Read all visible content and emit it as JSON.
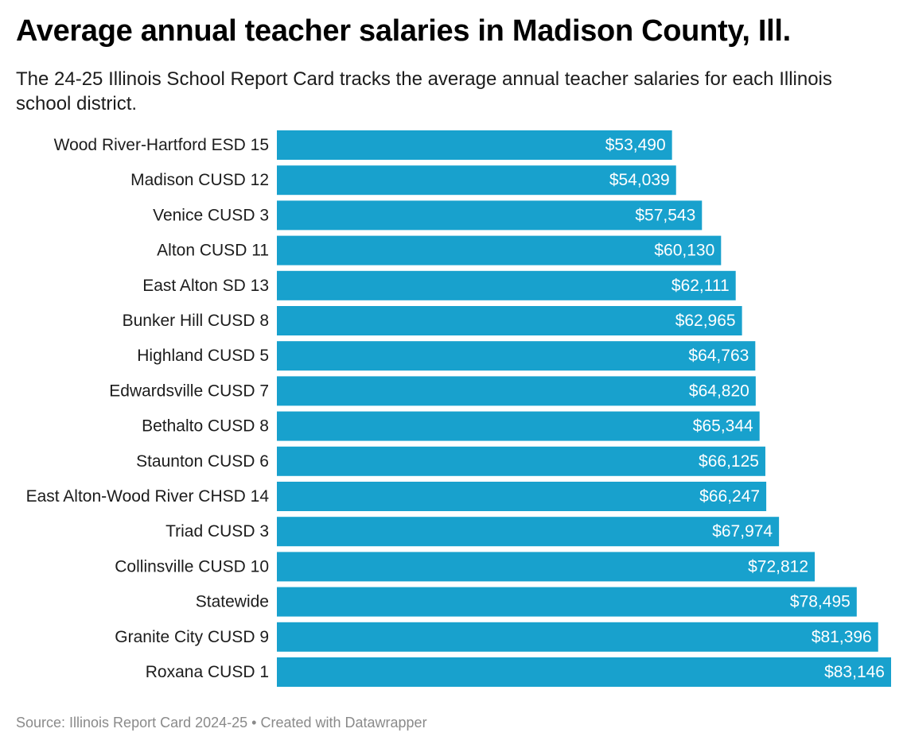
{
  "header": {
    "title": "Average annual teacher salaries in Madison County, Ill.",
    "subtitle": "The 24-25 Illinois School Report Card tracks the average annual teacher salaries for each Illinois school district."
  },
  "footer": {
    "source": "Source: Illinois Report Card 2024-25 • Created with Datawrapper"
  },
  "chart_data": {
    "type": "bar",
    "orientation": "horizontal",
    "categories": [
      "Wood River-Hartford ESD 15",
      "Madison CUSD 12",
      "Venice CUSD 3",
      "Alton CUSD 11",
      "East Alton SD 13",
      "Bunker Hill CUSD 8",
      "Highland CUSD 5",
      "Edwardsville CUSD 7",
      "Bethalto CUSD 8",
      "Staunton CUSD 6",
      "East Alton-Wood River CHSD 14",
      "Triad CUSD 3",
      "Collinsville CUSD 10",
      "Statewide",
      "Granite City CUSD 9",
      "Roxana CUSD 1"
    ],
    "values": [
      53490,
      54039,
      57543,
      60130,
      62111,
      62965,
      64763,
      64820,
      65344,
      66125,
      66247,
      67974,
      72812,
      78495,
      81396,
      83146
    ],
    "value_labels": [
      "$53,490",
      "$54,039",
      "$57,543",
      "$60,130",
      "$62,111",
      "$62,965",
      "$64,763",
      "$64,820",
      "$65,344",
      "$66,125",
      "$66,247",
      "$67,974",
      "$72,812",
      "$78,495",
      "$81,396",
      "$83,146"
    ],
    "xlim": [
      0,
      83146
    ],
    "bar_color": "#18a1cd",
    "grid": false,
    "legend": "none"
  }
}
